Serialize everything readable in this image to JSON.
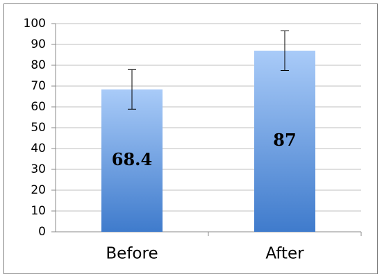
{
  "chart_data": {
    "type": "bar",
    "categories": [
      "Before",
      "After"
    ],
    "values": [
      68.4,
      87
    ],
    "errors": [
      9.5,
      9.5
    ],
    "color": "#3f7bcc",
    "ylim": [
      0,
      100
    ],
    "yticks": [
      0,
      10,
      20,
      30,
      40,
      50,
      60,
      70,
      80,
      90,
      100
    ],
    "grid": true
  }
}
